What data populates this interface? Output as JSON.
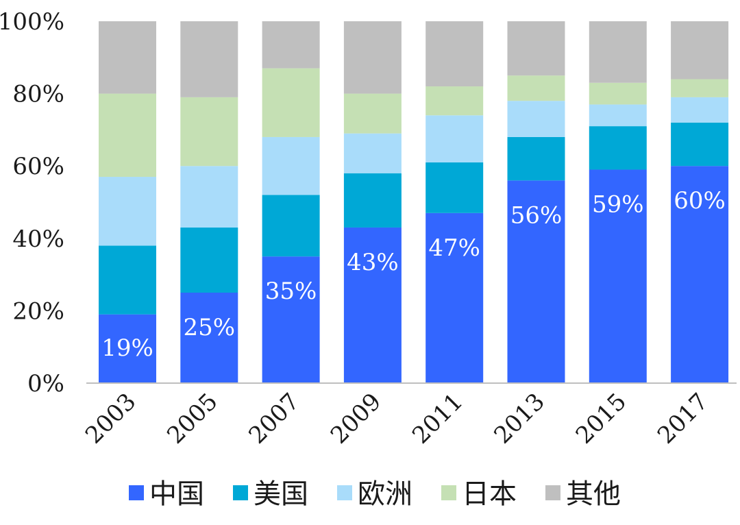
{
  "chart_data": {
    "type": "bar",
    "stacked": true,
    "categories": [
      "2003",
      "2005",
      "2007",
      "2009",
      "2011",
      "2013",
      "2015",
      "2017"
    ],
    "ylim": [
      0,
      100
    ],
    "yticks": [
      "0%",
      "20%",
      "40%",
      "60%",
      "80%",
      "100%"
    ],
    "title": "",
    "xlabel": "",
    "ylabel": "",
    "legend_position": "bottom",
    "series": [
      {
        "name": "中国",
        "color": "#3366ff",
        "values": [
          19,
          25,
          35,
          43,
          47,
          56,
          59,
          60
        ],
        "labels": [
          "19%",
          "25%",
          "35%",
          "43%",
          "47%",
          "56%",
          "59%",
          "60%"
        ]
      },
      {
        "name": "美国",
        "color": "#00a8d6",
        "values": [
          19,
          18,
          17,
          15,
          14,
          12,
          12,
          12
        ]
      },
      {
        "name": "欧洲",
        "color": "#a9dcfa",
        "values": [
          19,
          17,
          16,
          11,
          13,
          10,
          6,
          7
        ]
      },
      {
        "name": "日本",
        "color": "#c5e0b4",
        "values": [
          23,
          19,
          19,
          11,
          8,
          7,
          6,
          5
        ]
      },
      {
        "name": "其他",
        "color": "#bfbfbf",
        "values": [
          20,
          21,
          13,
          20,
          18,
          15,
          17,
          16
        ]
      }
    ]
  }
}
